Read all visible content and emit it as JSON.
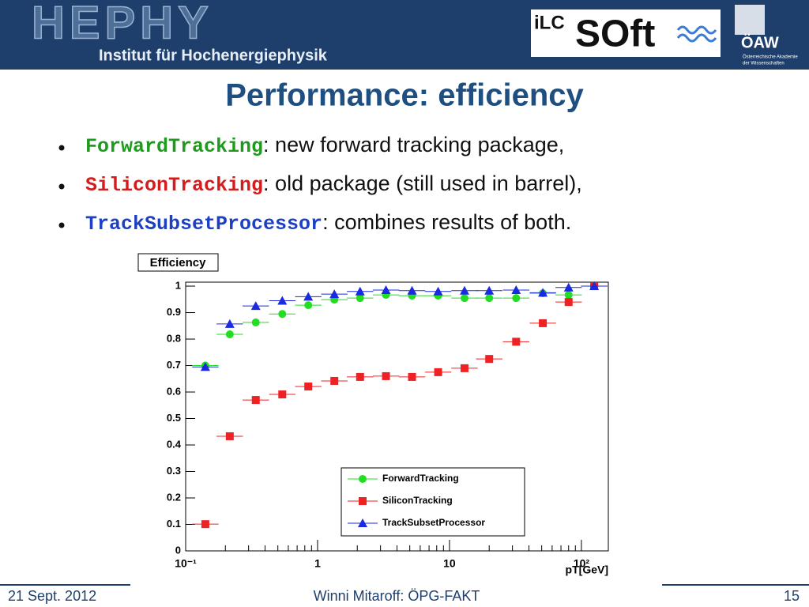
{
  "header": {
    "logo": "HEPHY",
    "institute": "Institut für Hochenergiephysik",
    "ilc": "iLC",
    "soft": "SOft",
    "oaw": "ÖAW",
    "academy": [
      "Österreichische Akademie",
      "der Wissenschaften"
    ]
  },
  "slide": {
    "title": "Performance: efficiency",
    "bullets": [
      {
        "name": "ForwardTracking",
        "text": ": new forward tracking package,",
        "color": "#1f9a1f"
      },
      {
        "name": "SiliconTracking",
        "text": ": old package (still used in barrel),",
        "color": "#d41c1c"
      },
      {
        "name": "TrackSubsetProcessor",
        "text": ": combines results of both.",
        "color": "#1c3fc4"
      }
    ]
  },
  "chart_data": {
    "type": "scatter",
    "title": "Efficiency",
    "x_label": "pT[GeV]",
    "xscale": "log",
    "xlim": [
      0.1,
      160
    ],
    "xticks": [
      {
        "value": 0.1,
        "label": "10⁻¹"
      },
      1,
      10,
      {
        "value": 100,
        "label": "10²"
      }
    ],
    "ylim": [
      0,
      1.015
    ],
    "yticks": [
      0,
      0.1,
      0.2,
      0.3,
      0.4,
      0.5,
      0.6,
      0.7,
      0.8,
      0.9,
      1
    ],
    "x": [
      0.141,
      0.216,
      0.34,
      0.54,
      0.85,
      1.34,
      2.1,
      3.3,
      5.2,
      8.2,
      13,
      20,
      32,
      51,
      80,
      125
    ],
    "legend": "lower right",
    "series": [
      {
        "name": "ForwardTracking",
        "color": "#22dd22",
        "marker": "circle",
        "values": [
          0.7,
          0.818,
          0.863,
          0.895,
          0.928,
          0.949,
          0.955,
          0.967,
          0.964,
          0.964,
          0.955,
          0.955,
          0.955,
          0.973,
          0.967,
          1.0
        ]
      },
      {
        "name": "SiliconTracking",
        "color": "#ee2222",
        "marker": "square",
        "values": [
          0.101,
          0.433,
          0.57,
          0.591,
          0.621,
          0.642,
          0.657,
          0.66,
          0.657,
          0.675,
          0.69,
          0.725,
          0.79,
          0.86,
          0.94,
          1.0
        ]
      },
      {
        "name": "TrackSubsetProcessor",
        "color": "#1a2ae0",
        "marker": "triangle",
        "values": [
          0.695,
          0.857,
          0.925,
          0.945,
          0.96,
          0.97,
          0.98,
          0.985,
          0.983,
          0.98,
          0.983,
          0.983,
          0.985,
          0.975,
          0.995,
          1.0
        ]
      }
    ]
  },
  "footer": {
    "date": "21 Sept. 2012",
    "author": "Winni Mitaroff: ÖPG-FAKT",
    "page": "15"
  }
}
